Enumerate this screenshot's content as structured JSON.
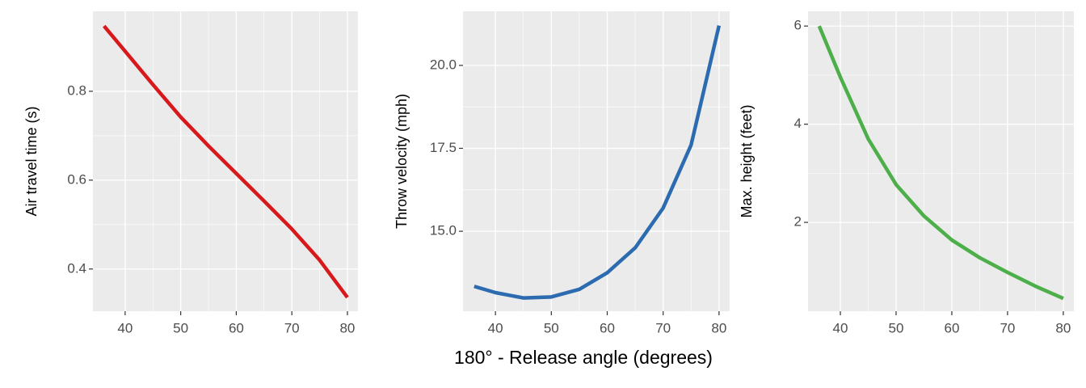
{
  "xlabel": "180° - Release angle (degrees)",
  "chart_data": [
    {
      "type": "line",
      "ylabel": "Air travel time (s)",
      "color": "#d7191c",
      "x": [
        36.2,
        40,
        45,
        50,
        55,
        60,
        65,
        70,
        75,
        80
      ],
      "values": [
        0.947,
        0.89,
        0.815,
        0.742,
        0.677,
        0.615,
        0.553,
        0.49,
        0.42,
        0.336
      ],
      "xlim": [
        34.2,
        81.9
      ],
      "xticks": [
        40,
        50,
        60,
        70,
        80
      ],
      "ylim": [
        0.305,
        0.98
      ],
      "yticks": [
        {
          "value": 0.4,
          "label": "0.4"
        },
        {
          "value": 0.6,
          "label": "0.6"
        },
        {
          "value": 0.8,
          "label": "0.8"
        }
      ],
      "grid": true
    },
    {
      "type": "line",
      "ylabel": "Throw velocity (mph)",
      "color": "#2c6bb0",
      "x": [
        36.2,
        40,
        45,
        50,
        55,
        60,
        65,
        70,
        75,
        80
      ],
      "values": [
        13.34,
        13.15,
        12.99,
        13.02,
        13.25,
        13.75,
        14.5,
        15.7,
        17.6,
        21.2
      ],
      "xlim": [
        34.2,
        81.9
      ],
      "xticks": [
        40,
        50,
        60,
        70,
        80
      ],
      "ylim": [
        12.59,
        21.63
      ],
      "yticks": [
        {
          "value": 15,
          "label": "15.0"
        },
        17.5,
        {
          "value": 20,
          "label": "20.0"
        }
      ],
      "grid": true
    },
    {
      "type": "line",
      "ylabel": "Max. height (feet)",
      "color": "#4daf4a",
      "x": [
        36.2,
        40,
        45,
        50,
        55,
        60,
        65,
        70,
        75,
        80
      ],
      "values": [
        6.0,
        4.96,
        3.7,
        2.77,
        2.13,
        1.64,
        1.28,
        0.98,
        0.7,
        0.45
      ],
      "xlim": [
        34.2,
        81.9
      ],
      "xticks": [
        40,
        50,
        60,
        70,
        80
      ],
      "ylim": [
        0.19,
        6.3
      ],
      "yticks": [
        2,
        4,
        6
      ],
      "grid": true
    }
  ]
}
